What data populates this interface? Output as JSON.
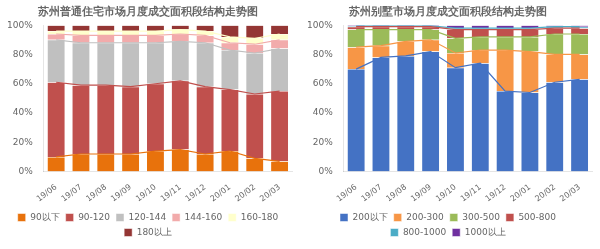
{
  "chart_data": [
    {
      "type": "bar",
      "title": "苏州普通住宅市场月度成交面积段结构走势图",
      "categories": [
        "19/06",
        "19/07",
        "19/08",
        "19/09",
        "19/10",
        "19/11",
        "19/12",
        "20/01",
        "20/02",
        "20/03"
      ],
      "series": [
        {
          "name": "90以下",
          "color": "#E8720C",
          "values": [
            0.1,
            0.12,
            0.12,
            0.12,
            0.14,
            0.15,
            0.12,
            0.14,
            0.09,
            0.07
          ]
        },
        {
          "name": "90-120",
          "color": "#C0504D",
          "values": [
            0.51,
            0.47,
            0.47,
            0.46,
            0.46,
            0.47,
            0.46,
            0.42,
            0.44,
            0.48
          ]
        },
        {
          "name": "120-144",
          "color": "#C0C0C0",
          "values": [
            0.29,
            0.29,
            0.29,
            0.3,
            0.28,
            0.27,
            0.3,
            0.27,
            0.28,
            0.29
          ]
        },
        {
          "name": "144-160",
          "color": "#F2ABAB",
          "values": [
            0.04,
            0.05,
            0.05,
            0.05,
            0.05,
            0.05,
            0.05,
            0.05,
            0.06,
            0.06
          ]
        },
        {
          "name": "160-180",
          "color": "#FFFFCC",
          "values": [
            0.02,
            0.03,
            0.03,
            0.03,
            0.03,
            0.03,
            0.03,
            0.04,
            0.04,
            0.04
          ]
        },
        {
          "name": "180以上",
          "color": "#943634",
          "values": [
            0.04,
            0.04,
            0.04,
            0.04,
            0.04,
            0.03,
            0.04,
            0.08,
            0.09,
            0.06
          ]
        }
      ],
      "ylim": [
        0,
        1.0
      ],
      "yticks": [
        {
          "value": 0,
          "label": "0%"
        },
        {
          "value": 0.2,
          "label": "20%"
        },
        {
          "value": 0.4,
          "label": "40%"
        },
        {
          "value": 0.6,
          "label": "60%"
        },
        {
          "value": 0.8,
          "label": "80%"
        },
        {
          "value": 1.0,
          "label": "100%"
        }
      ],
      "stacked": true,
      "grid": false,
      "legend": "bottom"
    },
    {
      "type": "bar",
      "title": "苏州别墅市场月度成交面积段结构走势图",
      "categories": [
        "19/06",
        "19/07",
        "19/08",
        "19/09",
        "19/10",
        "19/11",
        "19/12",
        "20/01",
        "20/02",
        "20/03"
      ],
      "series": [
        {
          "name": "200以下",
          "color": "#4472C4",
          "values": [
            0.7,
            0.78,
            0.79,
            0.82,
            0.71,
            0.74,
            0.55,
            0.54,
            0.61,
            0.63
          ]
        },
        {
          "name": "200-300",
          "color": "#F79646",
          "values": [
            0.15,
            0.08,
            0.1,
            0.08,
            0.1,
            0.09,
            0.28,
            0.28,
            0.19,
            0.17
          ]
        },
        {
          "name": "300-500",
          "color": "#9BBB59",
          "values": [
            0.12,
            0.11,
            0.08,
            0.07,
            0.1,
            0.09,
            0.09,
            0.1,
            0.14,
            0.14
          ]
        },
        {
          "name": "500-800",
          "color": "#C0504D",
          "values": [
            0.02,
            0.02,
            0.02,
            0.02,
            0.06,
            0.05,
            0.05,
            0.05,
            0.04,
            0.04
          ]
        },
        {
          "name": "800-1000",
          "color": "#4BACC6",
          "values": [
            0.005,
            0.005,
            0.005,
            0.005,
            0.01,
            0.01,
            0.01,
            0.01,
            0.01,
            0.01
          ]
        },
        {
          "name": "1000以上",
          "color": "#7030A0",
          "values": [
            0.005,
            0.005,
            0.005,
            0.005,
            0.02,
            0.02,
            0.02,
            0.02,
            0.01,
            0.01
          ]
        }
      ],
      "ylim": [
        0,
        1.0
      ],
      "yticks": [
        {
          "value": 0,
          "label": "0%"
        },
        {
          "value": 0.2,
          "label": "20%"
        },
        {
          "value": 0.4,
          "label": "40%"
        },
        {
          "value": 0.6,
          "label": "60%"
        },
        {
          "value": 0.8,
          "label": "80%"
        },
        {
          "value": 1.0,
          "label": "100%"
        }
      ],
      "stacked": true,
      "grid": false,
      "legend": "bottom"
    }
  ]
}
